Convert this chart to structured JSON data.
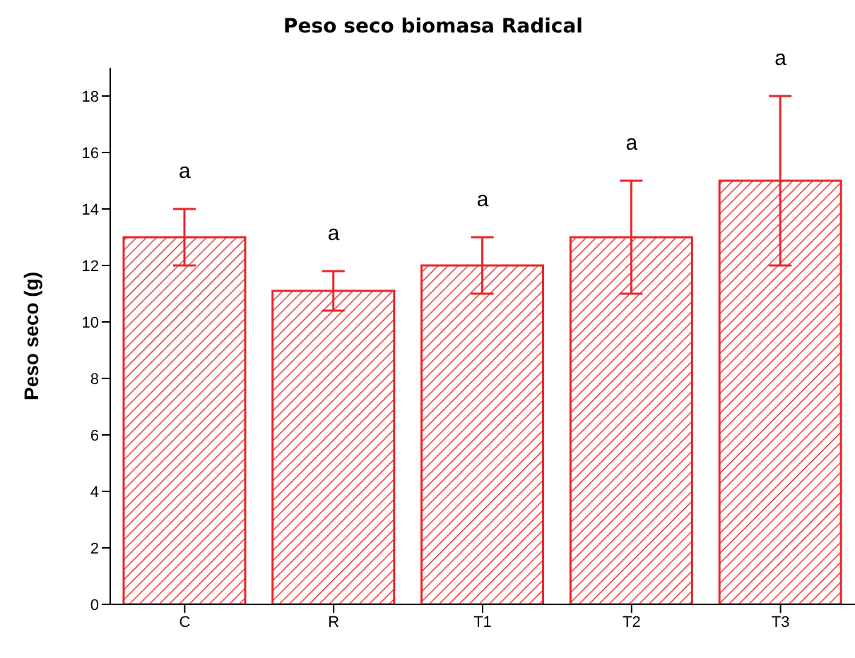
{
  "chart_data": {
    "type": "bar",
    "title": "Peso seco biomasa Radical",
    "ylabel": "Peso seco (g)",
    "categories": [
      "C",
      "R",
      "T1",
      "T2",
      "T3"
    ],
    "values": [
      13,
      11.1,
      12,
      13,
      15
    ],
    "errors": [
      [
        12,
        14
      ],
      [
        10.4,
        11.8
      ],
      [
        11,
        13
      ],
      [
        11,
        15
      ],
      [
        12,
        18
      ]
    ],
    "color": "#e8262b",
    "ylim": [
      0,
      19
    ],
    "yticks": [
      0,
      2,
      4,
      6,
      8,
      10,
      12,
      14,
      16,
      18
    ],
    "grid": false,
    "legend": false,
    "annotations": [
      "a",
      "a",
      "a",
      "a",
      "a"
    ]
  }
}
